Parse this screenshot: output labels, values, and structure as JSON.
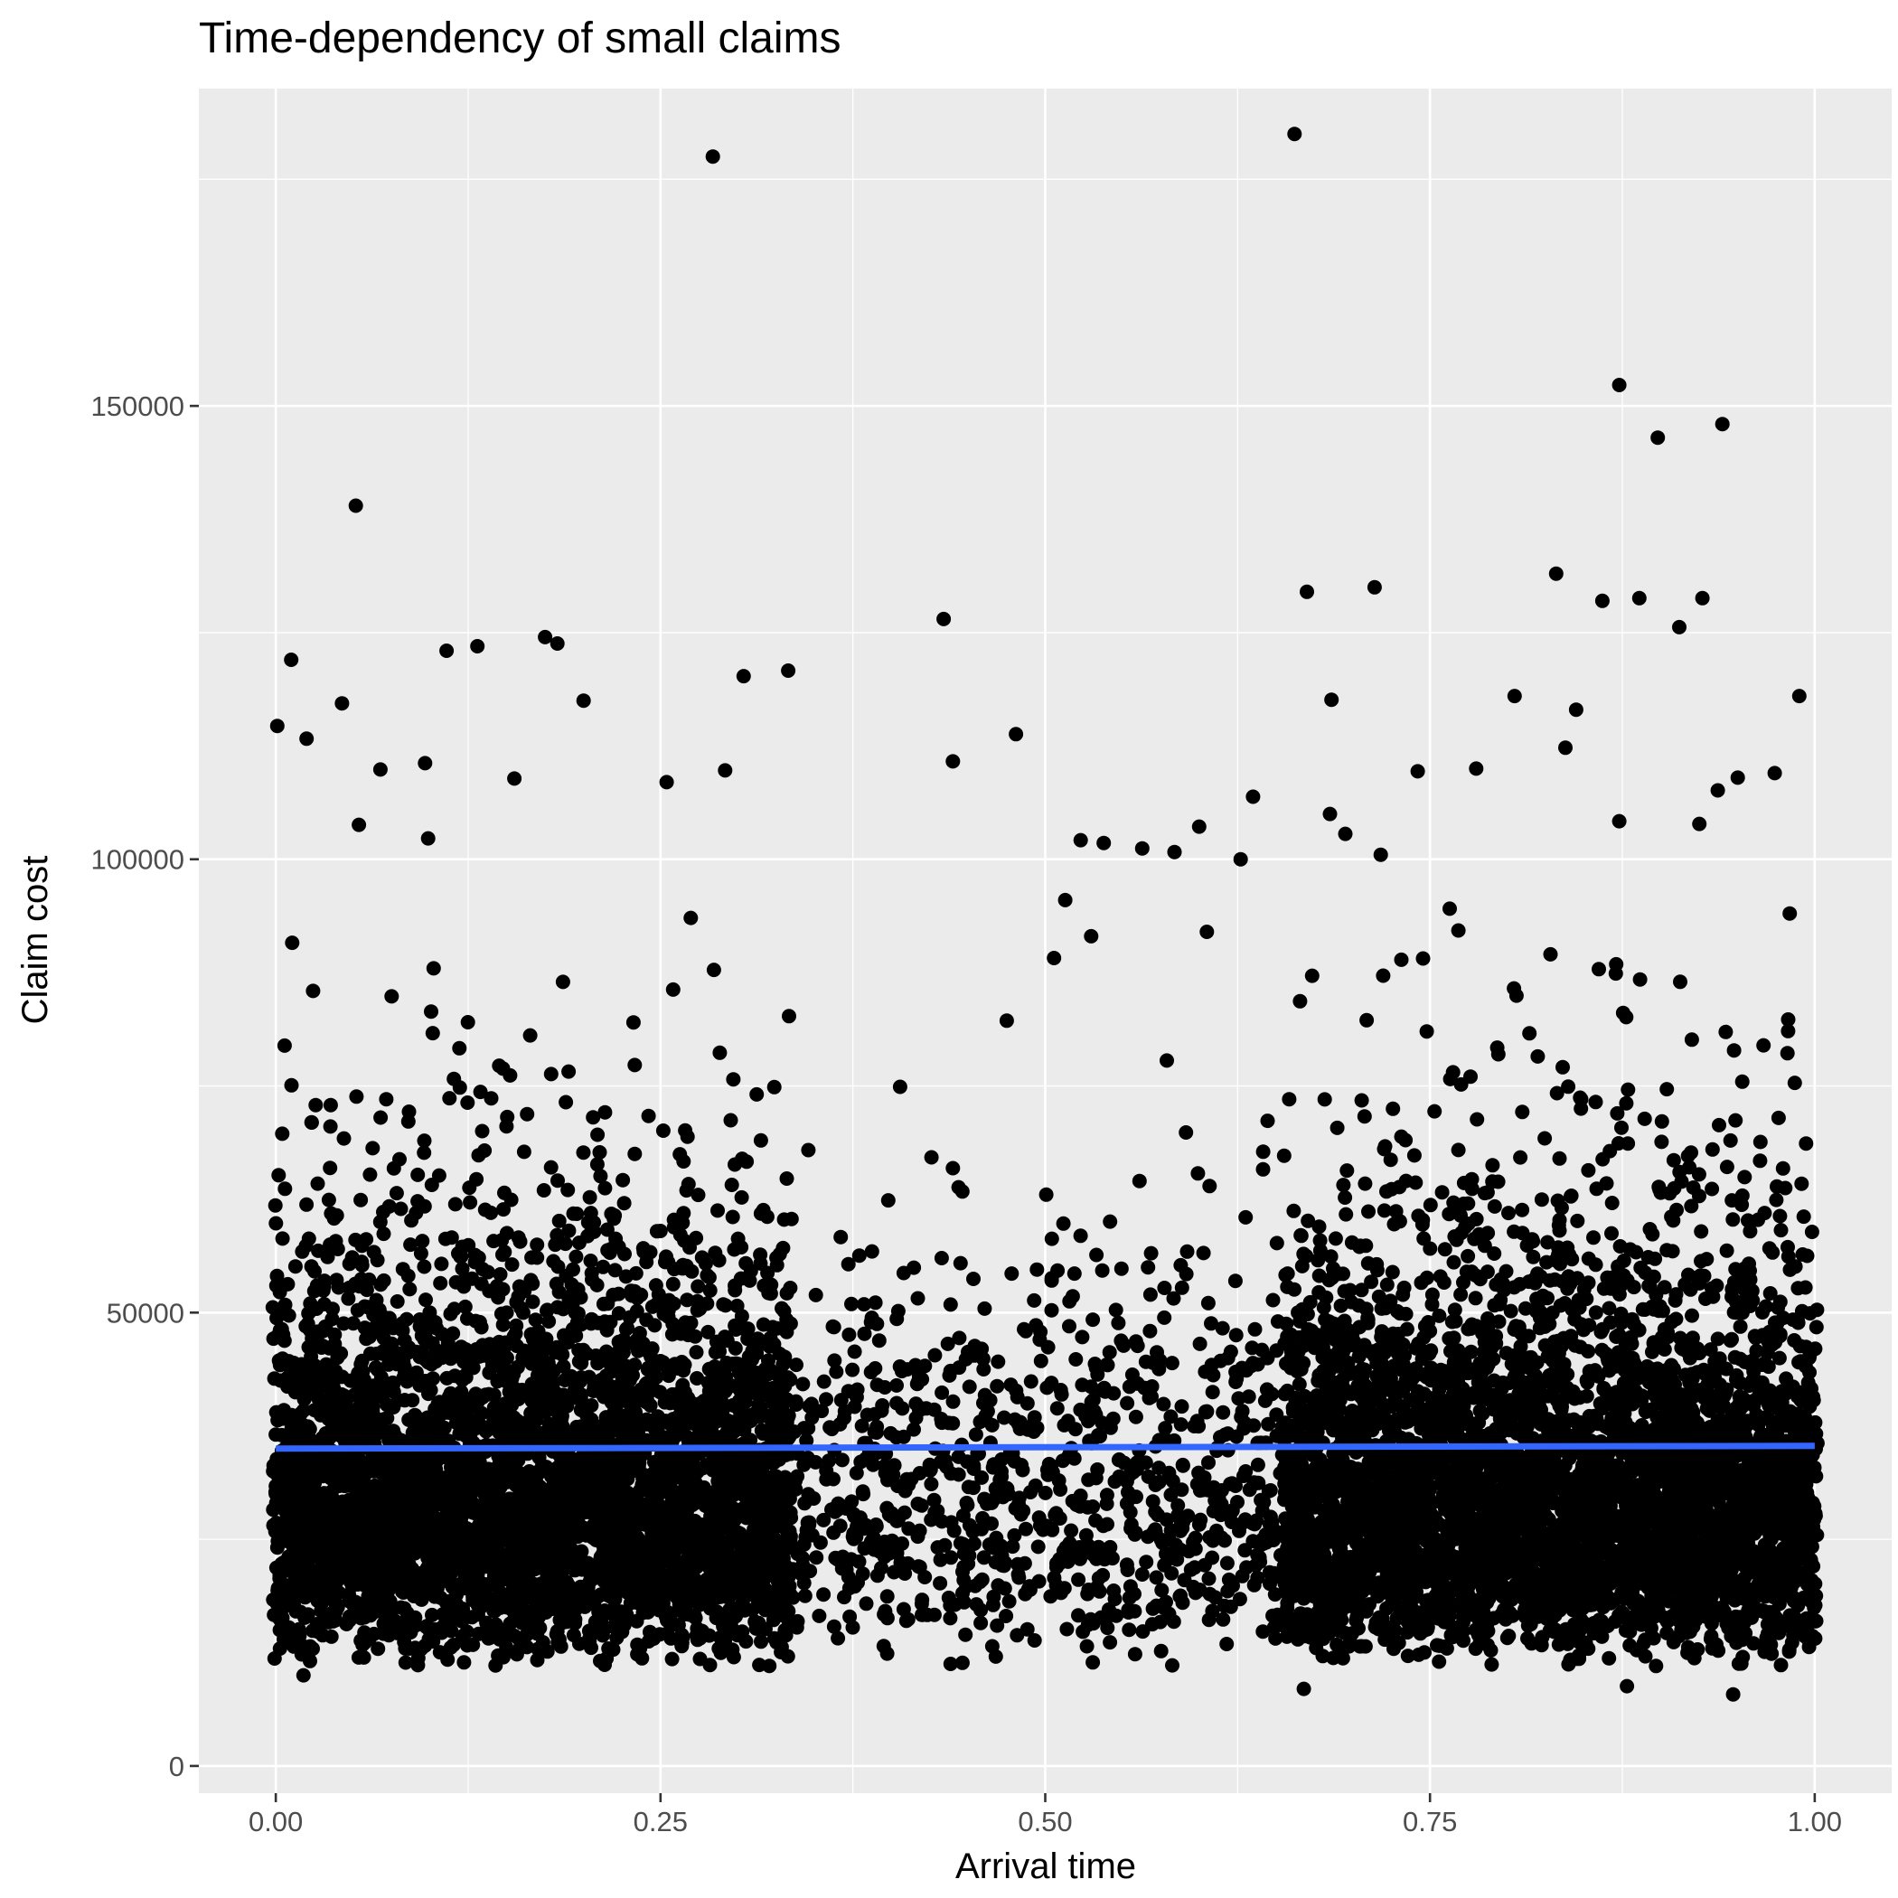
{
  "chart_data": {
    "type": "scatter",
    "title": "Time-dependency of small claims",
    "xlabel": "Arrival time",
    "ylabel": "Claim cost",
    "xlim": [
      -0.05,
      1.05
    ],
    "ylim": [
      -3000,
      185000
    ],
    "x_ticks": [
      0.0,
      0.25,
      0.5,
      0.75,
      1.0
    ],
    "x_tick_labels": [
      "0.00",
      "0.25",
      "0.50",
      "0.75",
      "1.00"
    ],
    "y_ticks": [
      0,
      50000,
      100000,
      150000
    ],
    "y_tick_labels": [
      "0",
      "50000",
      "100000",
      "150000"
    ],
    "grid": true,
    "legend": "none",
    "colors": {
      "points": "#000000",
      "trend": "#3366FF",
      "panel": "#EBEBEB",
      "grid": "#FFFFFF"
    },
    "series": [
      {
        "kind": "points",
        "notable_points": [
          {
            "x": 0.284,
            "y": 177500
          },
          {
            "x": 0.662,
            "y": 180000
          },
          {
            "x": 0.873,
            "y": 152300
          },
          {
            "x": 0.898,
            "y": 146500
          },
          {
            "x": 0.94,
            "y": 148000
          },
          {
            "x": 0.052,
            "y": 139000
          },
          {
            "x": 0.67,
            "y": 129500
          },
          {
            "x": 0.714,
            "y": 130000
          },
          {
            "x": 0.832,
            "y": 131500
          },
          {
            "x": 0.862,
            "y": 128500
          },
          {
            "x": 0.886,
            "y": 128800
          },
          {
            "x": 0.927,
            "y": 128800
          },
          {
            "x": 0.912,
            "y": 125600
          },
          {
            "x": 0.434,
            "y": 126500
          },
          {
            "x": 0.01,
            "y": 122000
          },
          {
            "x": 0.111,
            "y": 123000
          },
          {
            "x": 0.131,
            "y": 123500
          },
          {
            "x": 0.175,
            "y": 124500
          },
          {
            "x": 0.183,
            "y": 123800
          },
          {
            "x": 0.304,
            "y": 120200
          },
          {
            "x": 0.333,
            "y": 120800
          },
          {
            "x": 0.043,
            "y": 117200
          },
          {
            "x": 0.001,
            "y": 114700
          },
          {
            "x": 0.02,
            "y": 113300
          },
          {
            "x": 0.2,
            "y": 117500
          },
          {
            "x": 0.686,
            "y": 117600
          },
          {
            "x": 0.805,
            "y": 118000
          },
          {
            "x": 0.845,
            "y": 116500
          },
          {
            "x": 0.99,
            "y": 118000
          },
          {
            "x": 0.481,
            "y": 113800
          },
          {
            "x": 0.44,
            "y": 110800
          },
          {
            "x": 0.838,
            "y": 112300
          },
          {
            "x": 0.068,
            "y": 109900
          },
          {
            "x": 0.097,
            "y": 110600
          },
          {
            "x": 0.155,
            "y": 108900
          },
          {
            "x": 0.292,
            "y": 109800
          },
          {
            "x": 0.254,
            "y": 108500
          },
          {
            "x": 0.78,
            "y": 110000
          },
          {
            "x": 0.742,
            "y": 109700
          },
          {
            "x": 0.95,
            "y": 109000
          },
          {
            "x": 0.974,
            "y": 109500
          },
          {
            "x": 0.937,
            "y": 107600
          },
          {
            "x": 0.054,
            "y": 103800
          },
          {
            "x": 0.099,
            "y": 102300
          },
          {
            "x": 0.523,
            "y": 102100
          },
          {
            "x": 0.538,
            "y": 101800
          },
          {
            "x": 0.563,
            "y": 101200
          },
          {
            "x": 0.584,
            "y": 100800
          },
          {
            "x": 0.6,
            "y": 103600
          },
          {
            "x": 0.627,
            "y": 100000
          },
          {
            "x": 0.635,
            "y": 106900
          },
          {
            "x": 0.685,
            "y": 105000
          },
          {
            "x": 0.695,
            "y": 102800
          },
          {
            "x": 0.718,
            "y": 100500
          },
          {
            "x": 0.873,
            "y": 104200
          },
          {
            "x": 0.925,
            "y": 103900
          },
          {
            "x": 0.513,
            "y": 95500
          },
          {
            "x": 0.605,
            "y": 92000
          },
          {
            "x": 0.475,
            "y": 82200
          },
          {
            "x": 0.579,
            "y": 77800
          },
          {
            "x": 0.668,
            "y": 8500
          },
          {
            "x": 0.947,
            "y": 7900
          },
          {
            "x": 0.878,
            "y": 8800
          },
          {
            "x": 0.018,
            "y": 10000
          }
        ]
      },
      {
        "kind": "trend_line",
        "x": [
          0.0,
          1.0
        ],
        "y": [
          35000,
          35300
        ]
      }
    ]
  }
}
